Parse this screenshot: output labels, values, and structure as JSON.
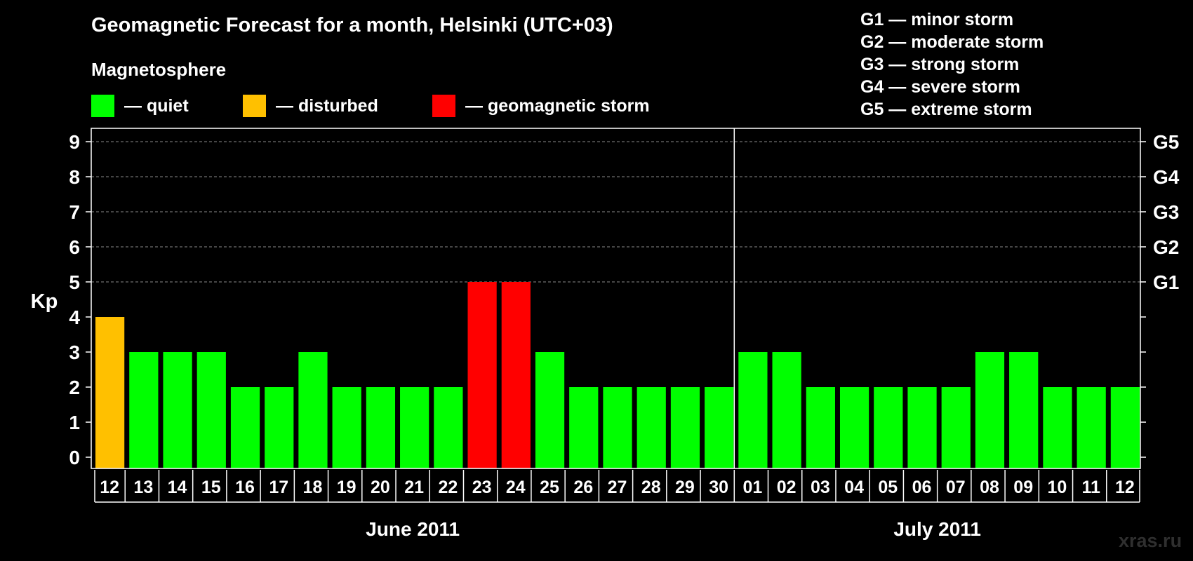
{
  "header": {
    "title": "Geomagnetic Forecast for a month, Helsinki (UTC+03)",
    "subtitle": "Magnetosphere"
  },
  "legend": [
    {
      "label": "— quiet",
      "color": "#00ff00"
    },
    {
      "label": "— disturbed",
      "color": "#ffc000"
    },
    {
      "label": "— geomagnetic storm",
      "color": "#ff0000"
    }
  ],
  "storm_scale": [
    "G1 — minor storm",
    "G2 — moderate storm",
    "G3 — strong storm",
    "G4 — severe storm",
    "G5 — extreme storm"
  ],
  "watermark": "xras.ru",
  "chart_data": {
    "type": "bar",
    "ylabel": "Kp",
    "ylim": [
      0,
      9
    ],
    "yticks": [
      "0",
      "1",
      "2",
      "3",
      "4",
      "5",
      "6",
      "7",
      "8",
      "9"
    ],
    "right_axis": [
      {
        "value": 5,
        "label": "G1"
      },
      {
        "value": 6,
        "label": "G2"
      },
      {
        "value": 7,
        "label": "G3"
      },
      {
        "value": 8,
        "label": "G4"
      },
      {
        "value": 9,
        "label": "G5"
      }
    ],
    "grid": "dashed horizontal at Kp 5-9",
    "categories": [
      "12",
      "13",
      "14",
      "15",
      "16",
      "17",
      "18",
      "19",
      "20",
      "21",
      "22",
      "23",
      "24",
      "25",
      "26",
      "27",
      "28",
      "29",
      "30",
      "01",
      "02",
      "03",
      "04",
      "05",
      "06",
      "07",
      "08",
      "09",
      "10",
      "11",
      "12"
    ],
    "values": [
      4,
      3,
      3,
      3,
      2,
      2,
      3,
      2,
      2,
      2,
      2,
      5,
      5,
      3,
      2,
      2,
      2,
      2,
      2,
      3,
      3,
      2,
      2,
      2,
      2,
      2,
      3,
      3,
      2,
      2,
      2
    ],
    "colors": {
      "quiet": "#00ff00",
      "disturbed": "#ffc000",
      "storm": "#ff0000"
    },
    "months": [
      {
        "label": "June 2011",
        "count": 19
      },
      {
        "label": "July 2011",
        "count": 12
      }
    ]
  }
}
